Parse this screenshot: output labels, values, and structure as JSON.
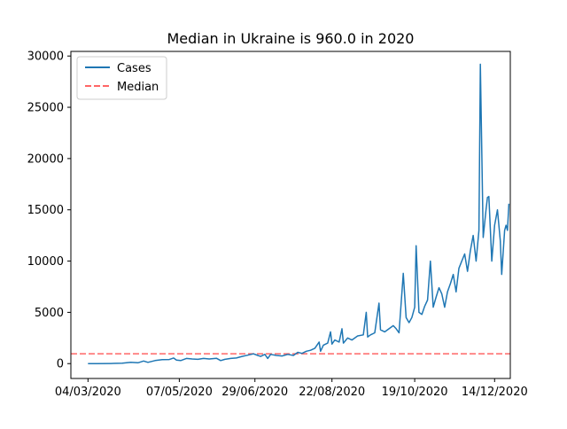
{
  "chart_data": {
    "type": "line",
    "title": "Median in Ukraine is 960.0 in 2020",
    "xlabel": "",
    "ylabel": "",
    "xlim": [
      "2020-02-21",
      "2020-12-25"
    ],
    "ylim": [
      -1450,
      30450
    ],
    "x_ticks": [
      "04/03/2020",
      "07/05/2020",
      "29/06/2020",
      "22/08/2020",
      "19/10/2020",
      "14/12/2020"
    ],
    "y_ticks": [
      0,
      5000,
      10000,
      15000,
      20000,
      25000,
      30000
    ],
    "legend": {
      "position": "top-left",
      "entries": [
        "Cases",
        "Median"
      ]
    },
    "grid": false,
    "series": [
      {
        "name": "Cases",
        "color": "#1f77b4",
        "style": "solid",
        "points": [
          [
            "2020-03-04",
            1
          ],
          [
            "2020-03-10",
            2
          ],
          [
            "2020-03-20",
            10
          ],
          [
            "2020-03-28",
            40
          ],
          [
            "2020-04-03",
            120
          ],
          [
            "2020-04-08",
            80
          ],
          [
            "2020-04-12",
            250
          ],
          [
            "2020-04-15",
            120
          ],
          [
            "2020-04-20",
            300
          ],
          [
            "2020-04-25",
            380
          ],
          [
            "2020-04-30",
            400
          ],
          [
            "2020-05-03",
            550
          ],
          [
            "2020-05-05",
            350
          ],
          [
            "2020-05-08",
            300
          ],
          [
            "2020-05-12",
            500
          ],
          [
            "2020-05-16",
            450
          ],
          [
            "2020-05-20",
            420
          ],
          [
            "2020-05-24",
            500
          ],
          [
            "2020-05-28",
            450
          ],
          [
            "2020-06-02",
            520
          ],
          [
            "2020-06-05",
            300
          ],
          [
            "2020-06-08",
            420
          ],
          [
            "2020-06-12",
            500
          ],
          [
            "2020-06-16",
            550
          ],
          [
            "2020-06-20",
            700
          ],
          [
            "2020-06-24",
            820
          ],
          [
            "2020-06-28",
            950
          ],
          [
            "2020-07-01",
            800
          ],
          [
            "2020-07-03",
            700
          ],
          [
            "2020-07-06",
            900
          ],
          [
            "2020-07-08",
            500
          ],
          [
            "2020-07-10",
            900
          ],
          [
            "2020-07-14",
            800
          ],
          [
            "2020-07-18",
            750
          ],
          [
            "2020-07-22",
            900
          ],
          [
            "2020-07-26",
            800
          ],
          [
            "2020-07-29",
            1100
          ],
          [
            "2020-08-01",
            1000
          ],
          [
            "2020-08-04",
            1200
          ],
          [
            "2020-08-07",
            1300
          ],
          [
            "2020-08-10",
            1500
          ],
          [
            "2020-08-13",
            2100
          ],
          [
            "2020-08-14",
            1200
          ],
          [
            "2020-08-16",
            1800
          ],
          [
            "2020-08-19",
            2000
          ],
          [
            "2020-08-21",
            3100
          ],
          [
            "2020-08-22",
            1900
          ],
          [
            "2020-08-24",
            2300
          ],
          [
            "2020-08-27",
            2100
          ],
          [
            "2020-08-29",
            3400
          ],
          [
            "2020-08-30",
            2000
          ],
          [
            "2020-09-02",
            2500
          ],
          [
            "2020-09-05",
            2300
          ],
          [
            "2020-09-09",
            2700
          ],
          [
            "2020-09-13",
            2800
          ],
          [
            "2020-09-15",
            5000
          ],
          [
            "2020-09-16",
            2600
          ],
          [
            "2020-09-18",
            2800
          ],
          [
            "2020-09-21",
            3000
          ],
          [
            "2020-09-24",
            5900
          ],
          [
            "2020-09-25",
            3300
          ],
          [
            "2020-09-28",
            3100
          ],
          [
            "2020-10-01",
            3400
          ],
          [
            "2020-10-04",
            3700
          ],
          [
            "2020-10-06",
            3400
          ],
          [
            "2020-10-08",
            3000
          ],
          [
            "2020-10-11",
            8800
          ],
          [
            "2020-10-13",
            4500
          ],
          [
            "2020-10-15",
            4000
          ],
          [
            "2020-10-17",
            4500
          ],
          [
            "2020-10-19",
            5500
          ],
          [
            "2020-10-20",
            11500
          ],
          [
            "2020-10-22",
            5000
          ],
          [
            "2020-10-24",
            4800
          ],
          [
            "2020-10-26",
            5600
          ],
          [
            "2020-10-28",
            6200
          ],
          [
            "2020-10-30",
            10000
          ],
          [
            "2020-11-01",
            5500
          ],
          [
            "2020-11-03",
            6500
          ],
          [
            "2020-11-05",
            7400
          ],
          [
            "2020-11-07",
            6800
          ],
          [
            "2020-11-09",
            5500
          ],
          [
            "2020-11-11",
            7000
          ],
          [
            "2020-11-13",
            7800
          ],
          [
            "2020-11-15",
            8700
          ],
          [
            "2020-11-17",
            7000
          ],
          [
            "2020-11-19",
            9300
          ],
          [
            "2020-11-21",
            10000
          ],
          [
            "2020-11-23",
            10700
          ],
          [
            "2020-11-25",
            9000
          ],
          [
            "2020-11-27",
            11000
          ],
          [
            "2020-11-29",
            12500
          ],
          [
            "2020-12-01",
            10000
          ],
          [
            "2020-12-03",
            13000
          ],
          [
            "2020-12-04",
            29200
          ],
          [
            "2020-12-06",
            12300
          ],
          [
            "2020-12-08",
            15000
          ],
          [
            "2020-12-09",
            16200
          ],
          [
            "2020-12-10",
            16300
          ],
          [
            "2020-12-12",
            10000
          ],
          [
            "2020-12-14",
            13500
          ],
          [
            "2020-12-16",
            15000
          ],
          [
            "2020-12-18",
            12000
          ],
          [
            "2020-12-19",
            8700
          ],
          [
            "2020-12-21",
            13000
          ],
          [
            "2020-12-22",
            13500
          ],
          [
            "2020-12-23",
            13000
          ],
          [
            "2020-12-24",
            15600
          ]
        ]
      },
      {
        "name": "Median",
        "color": "#ff0000",
        "style": "dashed",
        "value": 960
      }
    ]
  }
}
